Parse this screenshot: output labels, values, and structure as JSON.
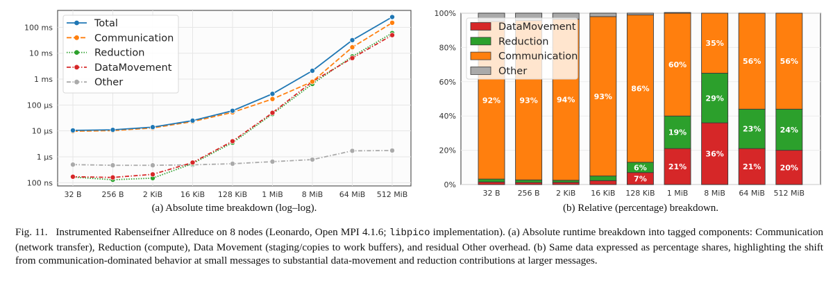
{
  "chart_data": [
    {
      "type": "line",
      "panel": "a",
      "title": "",
      "xlabel": "",
      "ylabel": "",
      "xscale": "log (categorical message sizes)",
      "yscale": "log",
      "categories": [
        "32 B",
        "256 B",
        "2 KiB",
        "16 KiB",
        "128 KiB",
        "1 MiB",
        "8 MiB",
        "64 MiB",
        "512 MiB"
      ],
      "ylim_seconds": [
        7.5e-08,
        0.45
      ],
      "yticks": [
        {
          "value": 1e-07,
          "label": "100 ns"
        },
        {
          "value": 1e-06,
          "label": "1 µs"
        },
        {
          "value": 1e-05,
          "label": "10 µs"
        },
        {
          "value": 0.0001,
          "label": "100 µs"
        },
        {
          "value": 0.001,
          "label": "1 ms"
        },
        {
          "value": 0.01,
          "label": "10 ms"
        },
        {
          "value": 0.1,
          "label": "100 ms"
        }
      ],
      "grid": true,
      "legend_position": "top-left",
      "series": [
        {
          "name": "Total",
          "color": "#1f77b4",
          "dash": "solid",
          "unit": "s",
          "values": [
            1.05e-05,
            1.1e-05,
            1.4e-05,
            2.5e-05,
            6e-05,
            0.00027,
            0.0021,
            0.032,
            0.25
          ]
        },
        {
          "name": "Communication",
          "color": "#ff7f0e",
          "dash": "dashed",
          "unit": "s",
          "values": [
            9.7e-06,
            1.03e-05,
            1.3e-05,
            2.3e-05,
            5.2e-05,
            0.00017,
            0.0008,
            0.017,
            0.15
          ]
        },
        {
          "name": "Reduction",
          "color": "#2ca02c",
          "dash": "dotted",
          "unit": "s",
          "values": [
            1.65e-07,
            1.3e-07,
            1.5e-07,
            5.5e-07,
            3.5e-06,
            4.5e-05,
            0.00065,
            0.0075,
            0.06
          ]
        },
        {
          "name": "DataMovement",
          "color": "#d62728",
          "dash": "dashdot",
          "unit": "s",
          "values": [
            1.7e-07,
            1.6e-07,
            2.1e-07,
            6e-07,
            4e-06,
            5e-05,
            0.0008,
            0.0065,
            0.05
          ]
        },
        {
          "name": "Other",
          "color": "#aaaaaa",
          "dash": "dashdot",
          "unit": "s",
          "values": [
            5e-07,
            4.7e-07,
            4.7e-07,
            4.9e-07,
            5.4e-07,
            6.5e-07,
            7.8e-07,
            1.7e-06,
            1.75e-06
          ]
        }
      ]
    },
    {
      "type": "bar",
      "stacked": true,
      "panel": "b",
      "title": "",
      "xlabel": "",
      "ylabel": "",
      "categories": [
        "32 B",
        "256 B",
        "2 KiB",
        "16 KiB",
        "128 KiB",
        "1 MiB",
        "8 MiB",
        "64 MiB",
        "512 MiB"
      ],
      "ylim": [
        0,
        100
      ],
      "yticks": [
        {
          "value": 0,
          "label": "0%"
        },
        {
          "value": 20,
          "label": "20%"
        },
        {
          "value": 40,
          "label": "40%"
        },
        {
          "value": 60,
          "label": "60%"
        },
        {
          "value": 80,
          "label": "80%"
        },
        {
          "value": 100,
          "label": "100%"
        }
      ],
      "grid": true,
      "legend_position": "top-left",
      "series": [
        {
          "name": "DataMovement",
          "color": "#d62728",
          "values": [
            1.5,
            1.2,
            1.3,
            2.3,
            7,
            21,
            36,
            21,
            20
          ],
          "labels": [
            "",
            "",
            "",
            "",
            "7%",
            "21%",
            "36%",
            "21%",
            "20%"
          ]
        },
        {
          "name": "Reduction",
          "color": "#2ca02c",
          "values": [
            1.7,
            1.5,
            1.2,
            2.7,
            6,
            19,
            29,
            23,
            24
          ],
          "labels": [
            "",
            "",
            "",
            "",
            "6%",
            "19%",
            "29%",
            "23%",
            "24%"
          ]
        },
        {
          "name": "Communication",
          "color": "#ff7f0e",
          "values": [
            92,
            93,
            94,
            93,
            86,
            60,
            35,
            56,
            56
          ],
          "labels": [
            "92%",
            "93%",
            "94%",
            "93%",
            "86%",
            "60%",
            "35%",
            "56%",
            "56%"
          ]
        },
        {
          "name": "Other",
          "color": "#aaaaaa",
          "values": [
            4.8,
            4.3,
            3.5,
            2.0,
            1.0,
            0.4,
            0,
            0,
            0
          ],
          "labels": [
            "",
            "",
            "",
            "",
            "",
            "",
            "",
            "",
            ""
          ]
        }
      ]
    }
  ],
  "subcaptions": {
    "a": "(a) Absolute time breakdown (log–log).",
    "b": "(b) Relative (percentage) breakdown."
  },
  "caption": {
    "part1": "Fig. 11.  Instrumented Rabenseifner Allreduce on 8 nodes (Leonardo, Open MPI 4.1.6; ",
    "code": "libpico",
    "part2": " implementation). (a) Absolute runtime breakdown into tagged components: Communication (network transfer), Reduction (compute), Data Movement (staging/copies to work buffers), and residual Other overhead. (b) Same data expressed as percentage shares, highlighting the shift from communication-dominated behavior at small messages to substantial data-movement and reduction contributions at larger messages."
  }
}
